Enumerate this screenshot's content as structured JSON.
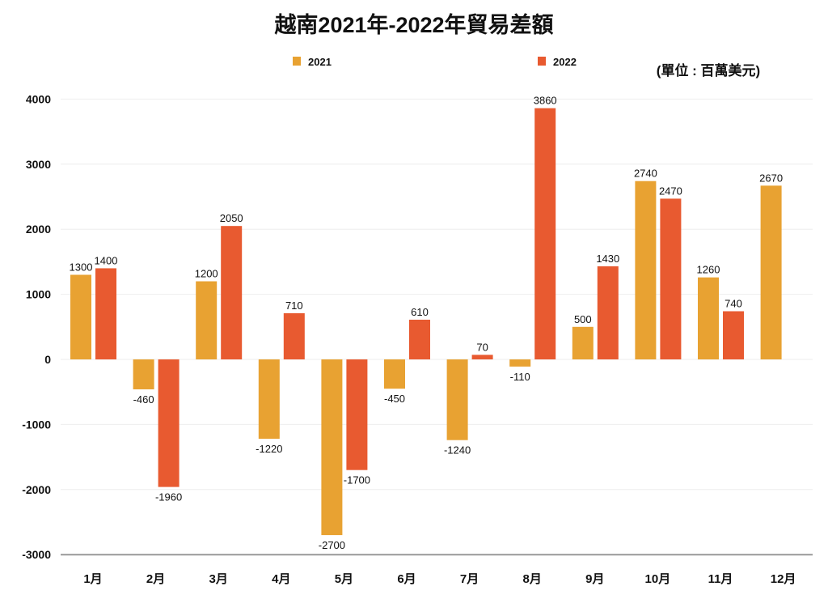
{
  "chart_data": {
    "type": "bar",
    "title": "越南2021年-2022年貿易差額",
    "unit_note": "(單位 : 百萬美元)",
    "categories": [
      "1月",
      "2月",
      "3月",
      "4月",
      "5月",
      "6月",
      "7月",
      "8月",
      "9月",
      "10月",
      "11月",
      "12月"
    ],
    "series": [
      {
        "name": "2021",
        "color": "#E8A232",
        "values": [
          1300,
          -460,
          1200,
          -1220,
          -2700,
          -450,
          -1240,
          -110,
          500,
          2740,
          1260,
          2670
        ]
      },
      {
        "name": "2022",
        "color": "#E85A30",
        "values": [
          1400,
          -1960,
          2050,
          710,
          -1700,
          610,
          70,
          3860,
          1430,
          2470,
          740,
          null
        ]
      }
    ],
    "yticks": [
      4000,
      3000,
      2000,
      1000,
      0,
      -1000,
      -2000,
      -3000
    ],
    "ylim": [
      -3000,
      4000
    ],
    "grid": true,
    "legend": "top"
  }
}
